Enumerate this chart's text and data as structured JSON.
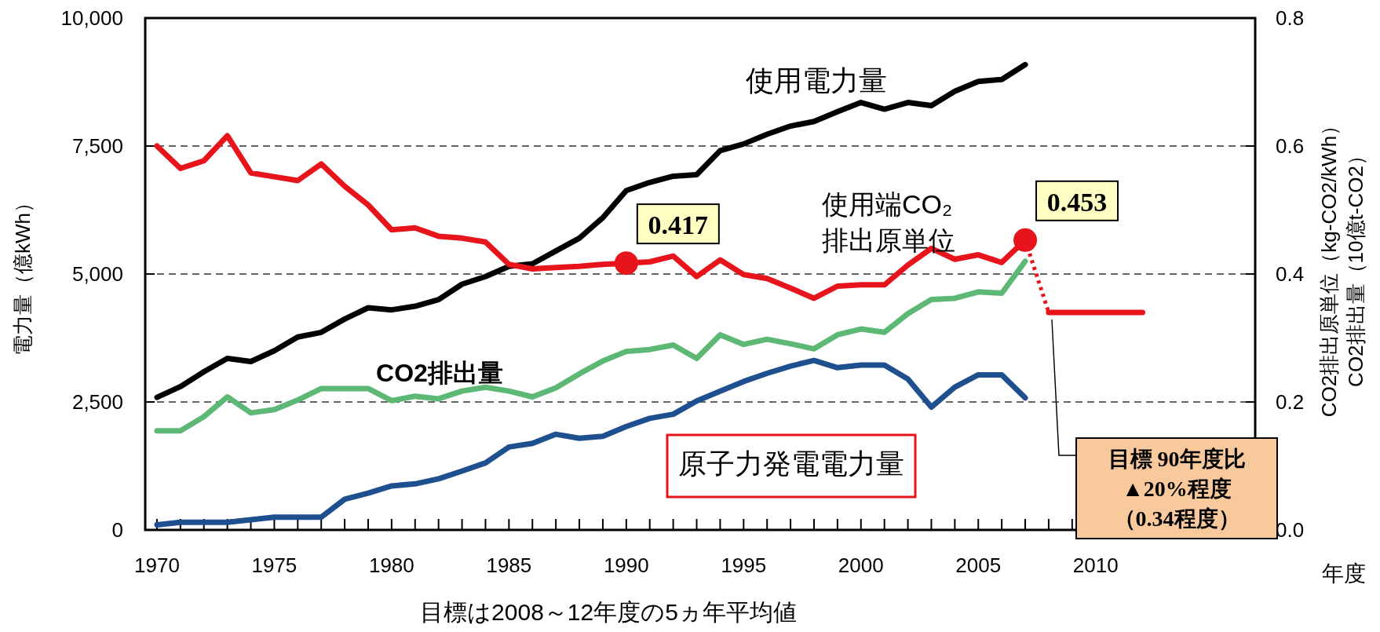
{
  "chart_data": {
    "type": "line",
    "xlabel": "年度",
    "ylabel": "電力量（億kWh）",
    "y2label": "CO2排出原単位（kg-CO2/kWh）\nCO2排出量（10億t-CO2）",
    "x": [
      1970,
      1971,
      1972,
      1973,
      1974,
      1975,
      1976,
      1977,
      1978,
      1979,
      1980,
      1981,
      1982,
      1983,
      1984,
      1985,
      1986,
      1987,
      1988,
      1989,
      1990,
      1991,
      1992,
      1993,
      1994,
      1995,
      1996,
      1997,
      1998,
      1999,
      2000,
      2001,
      2002,
      2003,
      2004,
      2005,
      2006,
      2007
    ],
    "xlim": [
      1969.5,
      2016.8
    ],
    "xticks": [
      {
        "value": 1970,
        "label": "1970"
      },
      {
        "value": 1971,
        "label": null
      },
      {
        "value": 1972,
        "label": null
      },
      {
        "value": 1973,
        "label": null
      },
      {
        "value": 1974,
        "label": null
      },
      {
        "value": 1975,
        "label": "1975"
      },
      {
        "value": 1976,
        "label": null
      },
      {
        "value": 1977,
        "label": null
      },
      {
        "value": 1978,
        "label": null
      },
      {
        "value": 1979,
        "label": null
      },
      {
        "value": 1980,
        "label": "1980"
      },
      {
        "value": 1981,
        "label": null
      },
      {
        "value": 1982,
        "label": null
      },
      {
        "value": 1983,
        "label": null
      },
      {
        "value": 1984,
        "label": null
      },
      {
        "value": 1985,
        "label": "1985"
      },
      {
        "value": 1986,
        "label": null
      },
      {
        "value": 1987,
        "label": null
      },
      {
        "value": 1988,
        "label": null
      },
      {
        "value": 1989,
        "label": null
      },
      {
        "value": 1990,
        "label": "1990"
      },
      {
        "value": 1991,
        "label": null
      },
      {
        "value": 1992,
        "label": null
      },
      {
        "value": 1993,
        "label": null
      },
      {
        "value": 1994,
        "label": null
      },
      {
        "value": 1995,
        "label": "1995"
      },
      {
        "value": 1996,
        "label": null
      },
      {
        "value": 1997,
        "label": null
      },
      {
        "value": 1998,
        "label": null
      },
      {
        "value": 1999,
        "label": null
      },
      {
        "value": 2000,
        "label": "2000"
      },
      {
        "value": 2001,
        "label": null
      },
      {
        "value": 2002,
        "label": null
      },
      {
        "value": 2003,
        "label": null
      },
      {
        "value": 2004,
        "label": null
      },
      {
        "value": 2005,
        "label": "2005"
      },
      {
        "value": 2006,
        "label": null
      },
      {
        "value": 2007,
        "label": null
      },
      {
        "value": 2008,
        "label": null
      },
      {
        "value": 2009,
        "label": null
      },
      {
        "value": 2010,
        "label": "2010"
      },
      {
        "value": 2011,
        "label": null
      },
      {
        "value": 2012,
        "label": null
      },
      {
        "value": 2013,
        "label": null
      },
      {
        "value": 2014,
        "label": null
      },
      {
        "value": 2015,
        "label": null
      },
      {
        "value": 2016,
        "label": null
      }
    ],
    "ylim": [
      0,
      10000
    ],
    "yticks": [
      0,
      {
        "value": 2500,
        "label": "2,500"
      },
      {
        "value": 5000,
        "label": "5,000"
      },
      {
        "value": 7500,
        "label": "7,500"
      },
      {
        "value": 10000,
        "label": "10,000"
      }
    ],
    "y2lim": [
      0,
      0.8
    ],
    "y2ticks": [
      {
        "value": 0,
        "label": "0.0"
      },
      0.2,
      0.4,
      0.6,
      0.8
    ],
    "grid": "y",
    "line_style": "solid",
    "series": [
      {
        "name": "使用電力量",
        "color": "#000000",
        "axis": "y",
        "values": [
          2590,
          2800,
          3090,
          3350,
          3290,
          3500,
          3770,
          3860,
          4120,
          4340,
          4300,
          4370,
          4500,
          4800,
          4950,
          5150,
          5200,
          5450,
          5700,
          6100,
          6630,
          6790,
          6910,
          6940,
          7410,
          7540,
          7730,
          7890,
          7980,
          8170,
          8350,
          8220,
          8350,
          8290,
          8570,
          8760,
          8800,
          9090
        ]
      },
      {
        "name": "CO2排出量",
        "color": "#5cb874",
        "axis": "y2",
        "values": [
          0.155,
          0.155,
          0.177,
          0.208,
          0.183,
          0.188,
          0.203,
          0.221,
          0.221,
          0.221,
          0.202,
          0.209,
          0.205,
          0.217,
          0.223,
          0.217,
          0.208,
          0.222,
          0.244,
          0.264,
          0.279,
          0.282,
          0.289,
          0.268,
          0.305,
          0.29,
          0.298,
          0.291,
          0.283,
          0.305,
          0.314,
          0.309,
          0.338,
          0.36,
          0.362,
          0.372,
          0.37,
          0.42
        ]
      },
      {
        "name": "原子力発電電力量",
        "color": "#1e4f8f",
        "axis": "y",
        "values": [
          100,
          150,
          150,
          150,
          200,
          250,
          250,
          250,
          600,
          720,
          860,
          900,
          1000,
          1150,
          1310,
          1620,
          1690,
          1870,
          1790,
          1830,
          2020,
          2180,
          2260,
          2520,
          2710,
          2900,
          3060,
          3200,
          3310,
          3170,
          3220,
          3220,
          2950,
          2400,
          2790,
          3030,
          3030,
          2580
        ]
      },
      {
        "name": "使用端CO₂\n排出原単位",
        "color": "#e8141b",
        "axis": "y2",
        "values": [
          0.6,
          0.565,
          0.577,
          0.616,
          0.558,
          0.552,
          0.546,
          0.572,
          0.537,
          0.508,
          0.469,
          0.472,
          0.459,
          0.456,
          0.45,
          0.415,
          0.408,
          0.41,
          0.412,
          0.415,
          0.417,
          0.419,
          0.428,
          0.396,
          0.422,
          0.399,
          0.393,
          0.378,
          0.362,
          0.381,
          0.383,
          0.383,
          0.414,
          0.44,
          0.423,
          0.43,
          0.418,
          0.453
        ]
      },
      {
        "color": "#e8141b",
        "axis": "y2",
        "line_style": "dotted",
        "x": [
          2007,
          2008
        ],
        "values": [
          0.453,
          0.34
        ]
      },
      {
        "color": "#e8141b",
        "axis": "y2",
        "x": [
          2008,
          2012
        ],
        "values": [
          0.34,
          0.34
        ]
      },
      {
        "type": "scatter",
        "marker": "circle",
        "color": "#e8141b",
        "axis": "y2",
        "x": [
          1990,
          2007
        ],
        "values": [
          0.417,
          0.453
        ],
        "value_labels": [
          "0.417",
          "0.453"
        ]
      }
    ],
    "annotations": [
      "目標は2008～12年度の5ヵ年平均値",
      "目標 90年度比",
      "▲20%程度",
      "（0.34程度）"
    ]
  }
}
